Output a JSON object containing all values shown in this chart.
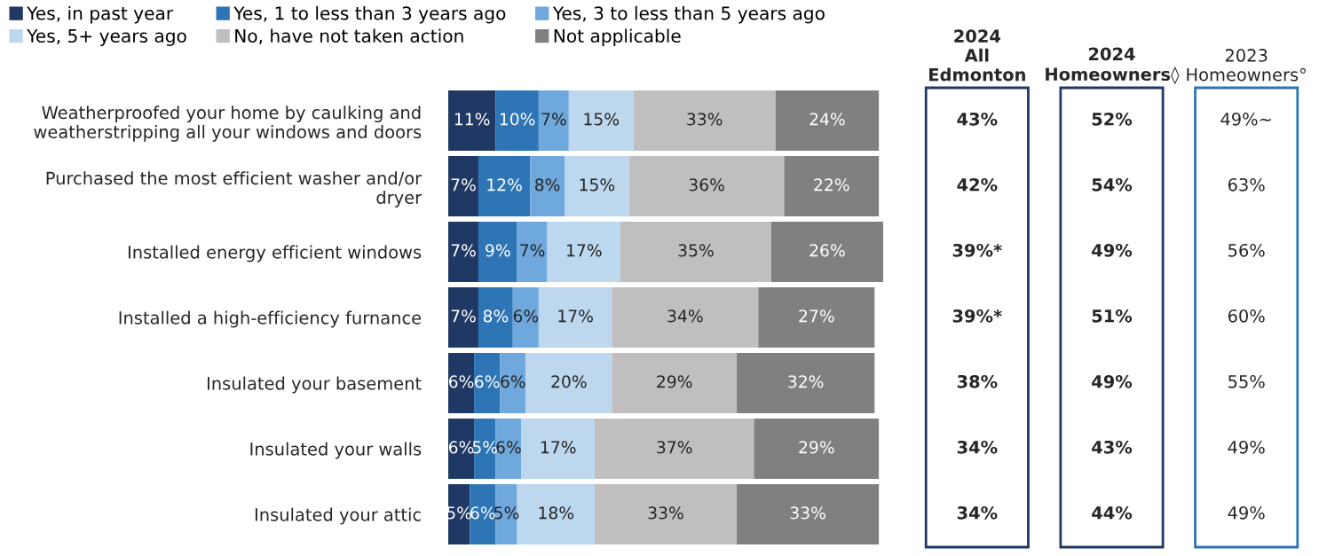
{
  "chart_data": [
    {
      "type": "bar",
      "orientation": "horizontal",
      "stacked": true,
      "legend": "top",
      "tick_labels": "y",
      "xlim": [
        0,
        101
      ],
      "categories": [
        "Weatherproofed your home by caulking and\nweatherstripping all your windows and doors",
        "Purchased the most efficient washer and/or\ndryer",
        "Installed energy efficient windows",
        "Installed a high-efficiency furnance",
        "Insulated your basement",
        "Insulated your walls",
        "Insulated your attic"
      ],
      "series": [
        {
          "name": "Yes, in past year",
          "color": "#1f3864",
          "values": [
            11,
            7,
            7,
            7,
            6,
            6,
            5
          ],
          "value_labels": [
            "11%",
            "7%",
            "7%",
            "7%",
            "6%",
            "6%",
            "5%"
          ]
        },
        {
          "name": "Yes, 1 to less than 3 years ago",
          "color": "#2e75b6",
          "values": [
            10,
            12,
            9,
            8,
            6,
            5,
            6
          ],
          "value_labels": [
            "10%",
            "12%",
            "9%",
            "8%",
            "6%",
            "5%",
            "6%"
          ]
        },
        {
          "name": "Yes, 3 to less than 5 years ago",
          "color": "#6fa8dc",
          "values": [
            7,
            8,
            7,
            6,
            6,
            6,
            5
          ],
          "value_labels": [
            "7%",
            "8%",
            "7%",
            "6%",
            "6%",
            "6%",
            "5%"
          ]
        },
        {
          "name": "Yes, 5+ years ago",
          "color": "#bdd7ee",
          "values": [
            15,
            15,
            17,
            17,
            20,
            17,
            18
          ],
          "value_labels": [
            "15%",
            "15%",
            "17%",
            "17%",
            "20%",
            "17%",
            "18%"
          ]
        },
        {
          "name": "No, have not taken action",
          "color": "#bfbfbf",
          "values": [
            33,
            36,
            35,
            34,
            29,
            37,
            33
          ],
          "value_labels": [
            "33%",
            "36%",
            "35%",
            "34%",
            "29%",
            "37%",
            "33%"
          ]
        },
        {
          "name": "Not applicable",
          "color": "#808080",
          "values": [
            24,
            22,
            26,
            27,
            32,
            29,
            33
          ],
          "value_labels": [
            "24%",
            "22%",
            "26%",
            "27%",
            "32%",
            "29%",
            "33%"
          ]
        }
      ]
    },
    {
      "type": "other",
      "categories": [
        "2024\nAll\nEdmonton",
        "2024\nHomeowners◊",
        "2023\nHomeowners°"
      ],
      "colors": [
        "#1f3864",
        "#1f3864",
        "#2e75b6"
      ],
      "annotations": [
        "43%",
        "52%",
        "49%~",
        "42%",
        "54%",
        "63%",
        "39%*",
        "49%",
        "56%",
        "39%*",
        "51%",
        "60%",
        "38%",
        "49%",
        "55%",
        "34%",
        "43%",
        "49%",
        "34%",
        "44%",
        "49%"
      ]
    }
  ]
}
